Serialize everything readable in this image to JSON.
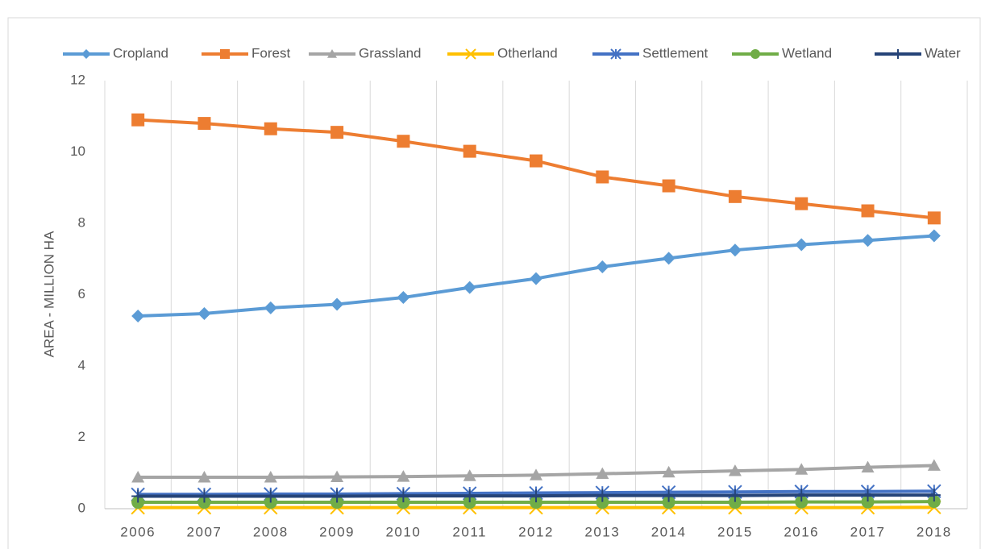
{
  "chart_data": {
    "type": "line",
    "y_label": "AREA - MILLION HA",
    "categories": [
      "2006",
      "2007",
      "2008",
      "2009",
      "2010",
      "2011",
      "2012",
      "2013",
      "2014",
      "2015",
      "2016",
      "2017",
      "2018"
    ],
    "series": [
      {
        "name": "Cropland",
        "color": "#5b9bd5",
        "marker": "diamond",
        "values": [
          5.4,
          5.47,
          5.63,
          5.73,
          5.92,
          6.2,
          6.45,
          6.78,
          7.02,
          7.25,
          7.4,
          7.52,
          7.65
        ]
      },
      {
        "name": "Forest",
        "color": "#ed7d31",
        "marker": "square",
        "values": [
          10.9,
          10.8,
          10.65,
          10.55,
          10.3,
          10.02,
          9.75,
          9.3,
          9.05,
          8.75,
          8.55,
          8.35,
          8.15
        ]
      },
      {
        "name": "Grassland",
        "color": "#a5a5a5",
        "marker": "triangle",
        "values": [
          0.88,
          0.88,
          0.88,
          0.89,
          0.9,
          0.92,
          0.94,
          0.98,
          1.02,
          1.06,
          1.1,
          1.16,
          1.21
        ]
      },
      {
        "name": "Otherland",
        "color": "#ffc000",
        "marker": "x",
        "values": [
          0.03,
          0.03,
          0.03,
          0.03,
          0.03,
          0.03,
          0.03,
          0.03,
          0.03,
          0.03,
          0.03,
          0.03,
          0.04
        ]
      },
      {
        "name": "Settlement",
        "color": "#4472c4",
        "marker": "star",
        "values": [
          0.4,
          0.4,
          0.41,
          0.41,
          0.42,
          0.43,
          0.44,
          0.45,
          0.46,
          0.47,
          0.48,
          0.48,
          0.49
        ]
      },
      {
        "name": "Wetland",
        "color": "#70ad47",
        "marker": "circle",
        "values": [
          0.18,
          0.18,
          0.18,
          0.18,
          0.18,
          0.18,
          0.18,
          0.18,
          0.18,
          0.18,
          0.19,
          0.19,
          0.2
        ]
      },
      {
        "name": "Water",
        "color": "#264478",
        "marker": "plus",
        "values": [
          0.35,
          0.35,
          0.35,
          0.35,
          0.36,
          0.36,
          0.36,
          0.37,
          0.37,
          0.37,
          0.38,
          0.38,
          0.38
        ]
      }
    ],
    "ylim": [
      0,
      12
    ],
    "yticks": [
      0,
      2,
      4,
      6,
      8,
      10,
      12
    ],
    "legend": "top",
    "grid": "x"
  }
}
